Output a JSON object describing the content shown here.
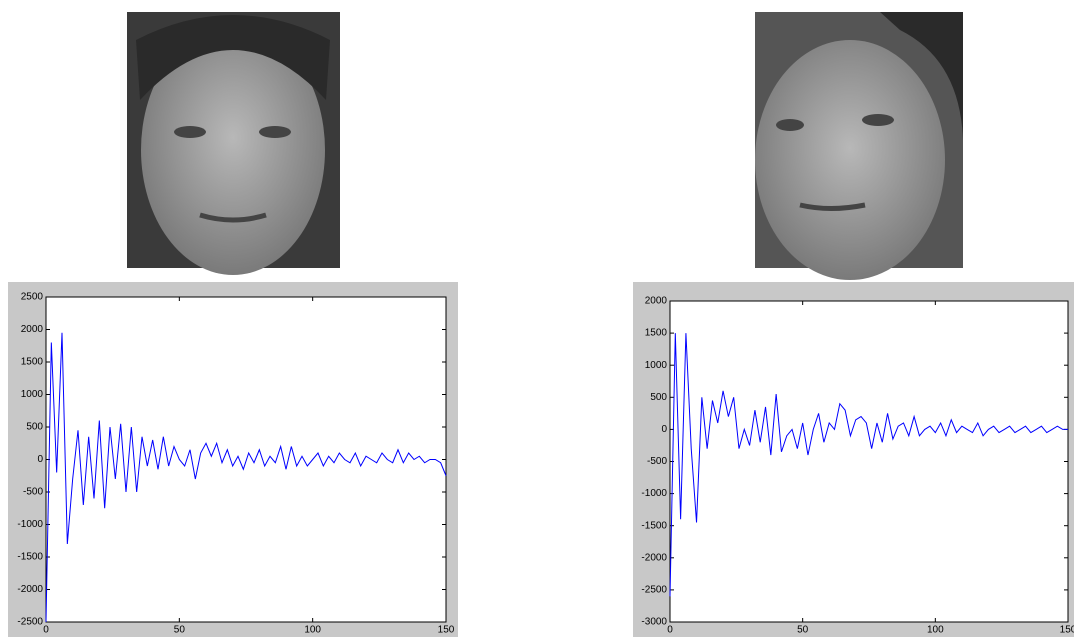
{
  "chart_data": [
    {
      "type": "line",
      "color": "#0000ff",
      "xlim": [
        0,
        150
      ],
      "xticks": [
        0,
        50,
        100,
        150
      ],
      "ylim": [
        -2500,
        2500
      ],
      "yticks": [
        -2500,
        -2000,
        -1500,
        -1000,
        -500,
        0,
        500,
        1000,
        1500,
        2000,
        2500
      ],
      "x": [
        0,
        2,
        4,
        6,
        8,
        10,
        12,
        14,
        16,
        18,
        20,
        22,
        24,
        26,
        28,
        30,
        32,
        34,
        36,
        38,
        40,
        42,
        44,
        46,
        48,
        50,
        52,
        54,
        56,
        58,
        60,
        62,
        64,
        66,
        68,
        70,
        72,
        74,
        76,
        78,
        80,
        82,
        84,
        86,
        88,
        90,
        92,
        94,
        96,
        98,
        100,
        102,
        104,
        106,
        108,
        110,
        112,
        114,
        116,
        118,
        120,
        122,
        124,
        126,
        128,
        130,
        132,
        134,
        136,
        138,
        140,
        142,
        144,
        146,
        148,
        150
      ],
      "values": [
        -2500,
        1800,
        -200,
        1950,
        -1300,
        -300,
        450,
        -700,
        350,
        -600,
        600,
        -750,
        500,
        -300,
        550,
        -500,
        500,
        -500,
        350,
        -100,
        300,
        -150,
        350,
        -100,
        200,
        0,
        -100,
        150,
        -300,
        100,
        250,
        50,
        250,
        -50,
        150,
        -100,
        50,
        -150,
        100,
        -50,
        150,
        -100,
        50,
        -50,
        200,
        -150,
        200,
        -100,
        50,
        -100,
        0,
        100,
        -100,
        50,
        -50,
        100,
        0,
        -50,
        100,
        -100,
        50,
        0,
        -50,
        100,
        0,
        -50,
        150,
        -50,
        100,
        0,
        50,
        -50,
        0,
        0,
        -50,
        -250
      ]
    },
    {
      "type": "line",
      "color": "#0000ff",
      "xlim": [
        0,
        150
      ],
      "xticks": [
        0,
        50,
        100,
        150
      ],
      "ylim": [
        -3000,
        2000
      ],
      "yticks": [
        -3000,
        -2500,
        -2000,
        -1500,
        -1000,
        -500,
        0,
        500,
        1000,
        1500,
        2000
      ],
      "x": [
        0,
        2,
        4,
        6,
        8,
        10,
        12,
        14,
        16,
        18,
        20,
        22,
        24,
        26,
        28,
        30,
        32,
        34,
        36,
        38,
        40,
        42,
        44,
        46,
        48,
        50,
        52,
        54,
        56,
        58,
        60,
        62,
        64,
        66,
        68,
        70,
        72,
        74,
        76,
        78,
        80,
        82,
        84,
        86,
        88,
        90,
        92,
        94,
        96,
        98,
        100,
        102,
        104,
        106,
        108,
        110,
        112,
        114,
        116,
        118,
        120,
        122,
        124,
        126,
        128,
        130,
        132,
        134,
        136,
        138,
        140,
        142,
        144,
        146,
        148,
        150
      ],
      "values": [
        -2600,
        1500,
        -1400,
        1500,
        -300,
        -1450,
        500,
        -300,
        450,
        100,
        600,
        200,
        500,
        -300,
        0,
        -250,
        300,
        -200,
        350,
        -400,
        550,
        -350,
        -100,
        0,
        -300,
        100,
        -400,
        0,
        250,
        -200,
        100,
        0,
        400,
        300,
        -100,
        150,
        200,
        100,
        -300,
        100,
        -200,
        250,
        -150,
        50,
        100,
        -100,
        200,
        -100,
        0,
        50,
        -50,
        100,
        -100,
        150,
        -50,
        50,
        0,
        -50,
        100,
        -100,
        0,
        50,
        -50,
        0,
        50,
        -50,
        0,
        50,
        -50,
        0,
        50,
        -50,
        0,
        50,
        0,
        0
      ]
    }
  ]
}
